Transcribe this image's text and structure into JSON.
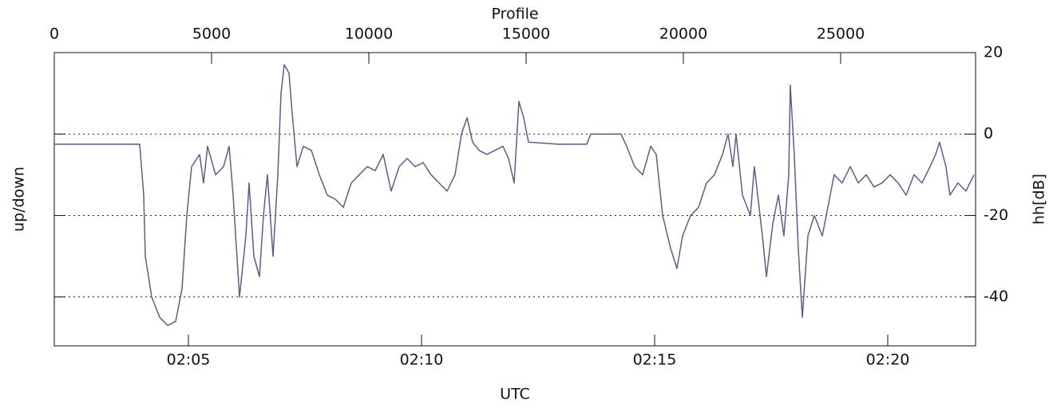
{
  "chart_data": {
    "type": "line",
    "x_label_top": "Profile",
    "x_label_bottom": "UTC",
    "y_label_left": "up/down",
    "y_label_right": "hh[dB]",
    "xlim": [
      0,
      29290
    ],
    "xticks": [
      0,
      5000,
      10000,
      15000,
      20000,
      25000
    ],
    "utc_ticks": [
      {
        "value": 4264,
        "label": "02:05"
      },
      {
        "value": 11675,
        "label": "02:10"
      },
      {
        "value": 19086,
        "label": "02:15"
      },
      {
        "value": 26498,
        "label": "02:20"
      }
    ],
    "ylim": [
      -52,
      20
    ],
    "yticks": [
      20,
      0,
      -20,
      -40
    ],
    "grid": true,
    "series": [
      {
        "color": "#5c5c8e",
        "x": [
          0,
          2716,
          2843,
          2893,
          3096,
          3350,
          3604,
          3858,
          4061,
          4213,
          4365,
          4619,
          4746,
          4873,
          5127,
          5381,
          5558,
          5685,
          5888,
          6091,
          6193,
          6345,
          6523,
          6650,
          6776,
          6954,
          7106,
          7208,
          7309,
          7462,
          7563,
          7716,
          7919,
          8172,
          8426,
          8680,
          8934,
          9188,
          9442,
          9695,
          9949,
          10203,
          10457,
          10711,
          10964,
          11218,
          11472,
          11726,
          11979,
          12233,
          12487,
          12741,
          12944,
          13121,
          13299,
          13502,
          13756,
          14010,
          14264,
          14441,
          14619,
          14771,
          14923,
          15076,
          16040,
          16928,
          17055,
          18020,
          18197,
          18451,
          18705,
          18959,
          19137,
          19340,
          19593,
          19796,
          19974,
          20228,
          20482,
          20736,
          20989,
          21243,
          21421,
          21573,
          21675,
          21878,
          22131,
          22258,
          22512,
          22639,
          22842,
          23020,
          23197,
          23350,
          23400,
          23527,
          23654,
          23781,
          23959,
          24162,
          24416,
          24669,
          24796,
          25050,
          25304,
          25558,
          25812,
          26065,
          26319,
          26573,
          26827,
          27081,
          27334,
          27588,
          27842,
          28020,
          28146,
          28349,
          28476,
          28730,
          28984,
          29238
        ],
        "values": [
          -2.5,
          -2.5,
          -15,
          -30,
          -40,
          -45,
          -47,
          -46,
          -38,
          -20,
          -8,
          -5,
          -12,
          -3,
          -10,
          -8,
          -3,
          -15,
          -40,
          -25,
          -12,
          -30,
          -35,
          -20,
          -10,
          -30,
          -10,
          10,
          17,
          15,
          5,
          -8,
          -3,
          -4,
          -10,
          -15,
          -16,
          -18,
          -12,
          -10,
          -8,
          -9,
          -5,
          -14,
          -8,
          -6,
          -8,
          -7,
          -10,
          -12,
          -14,
          -10,
          0,
          4,
          -2,
          -4,
          -5,
          -4,
          -3,
          -6,
          -12,
          8,
          4,
          -2,
          -2.5,
          -2.5,
          0,
          0,
          -3,
          -8,
          -10,
          -3,
          -5,
          -20,
          -28,
          -33,
          -25,
          -20,
          -18,
          -12,
          -10,
          -5,
          0,
          -8,
          0,
          -15,
          -20,
          -8,
          -25,
          -35,
          -22,
          -15,
          -25,
          -10,
          12,
          -5,
          -28,
          -45,
          -25,
          -20,
          -25,
          -15,
          -10,
          -12,
          -8,
          -12,
          -10,
          -13,
          -12,
          -10,
          -12,
          -15,
          -10,
          -12,
          -8,
          -5,
          -2,
          -8,
          -15,
          -12,
          -14,
          -10
        ]
      }
    ]
  }
}
